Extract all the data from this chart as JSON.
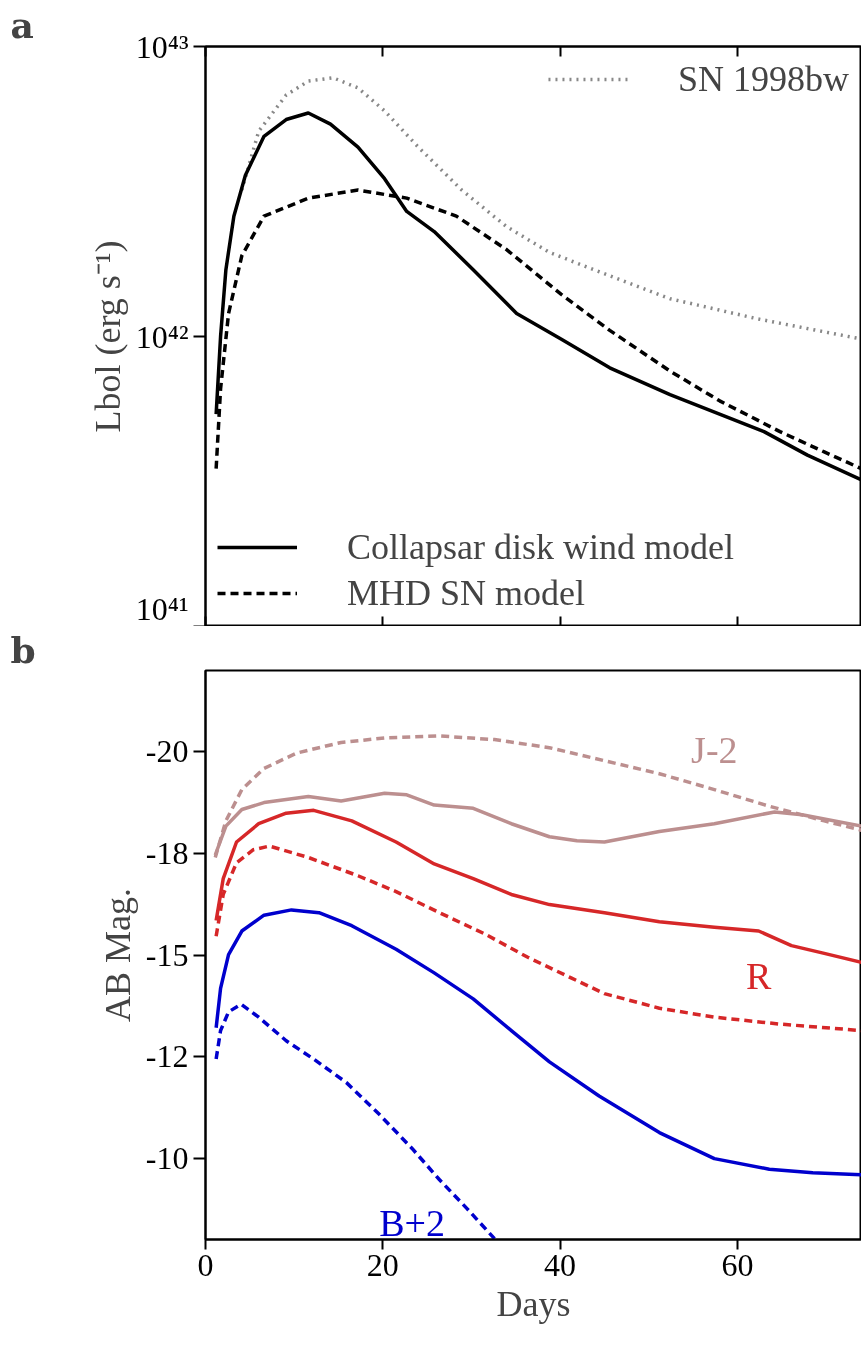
{
  "chart_data": [
    {
      "type": "line",
      "title": "a",
      "ylabel": "Lbol (erg s⁻¹)",
      "log": "y",
      "grid": false,
      "legend": [
        "top right",
        "bottom left"
      ],
      "tick_labels": "y",
      "xlim": [
        0,
        74
      ],
      "xticks": [
        {
          "value": 0,
          "label": null
        },
        {
          "value": 20,
          "label": null
        },
        {
          "value": 40,
          "label": null
        },
        {
          "value": 60,
          "label": null
        }
      ],
      "ylim": [
        1e+41,
        1e+43
      ],
      "yticks": [
        {
          "value": 1e+41,
          "label": "10⁴¹"
        },
        {
          "value": 1e+42,
          "label": "10⁴²"
        },
        {
          "value": 1e+43,
          "label": "10⁴³"
        }
      ],
      "series": [
        {
          "name": "SN 1998bw",
          "color": "#888888",
          "line_style": "dotted",
          "x": [
            4.1,
            6.0,
            9.1,
            11.6,
            14.4,
            17.2,
            20.2,
            24.0,
            28.9,
            33.9,
            38.8,
            43.8,
            52.4,
            62.3,
            74
          ],
          "values": [
            3.2e+42,
            5.1e+42,
            6.8e+42,
            7.6e+42,
            7.8e+42,
            7.2e+42,
            6e+42,
            4.5e+42,
            3.2e+42,
            2.4e+42,
            1.95e+42,
            1.7e+42,
            1.35e+42,
            1.15e+42,
            9.8e+41
          ]
        },
        {
          "name": "Collapsar disk wind model",
          "color": "#000000",
          "line_style": "solid",
          "x": [
            1.2,
            1.7,
            2.3,
            3.2,
            4.5,
            6.6,
            9.1,
            11.6,
            14.1,
            17.2,
            20.2,
            22.7,
            25.8,
            30.2,
            35.1,
            40.1,
            45.6,
            52.4,
            63.0,
            67.9,
            74
          ],
          "values": [
            5.4e+41,
            1e+42,
            1.7e+42,
            2.6e+42,
            3.6e+42,
            4.9e+42,
            5.6e+42,
            5.9e+42,
            5.4e+42,
            4.5e+42,
            3.5e+42,
            2.7e+42,
            2.3e+42,
            1.7e+42,
            1.2e+42,
            9.8e+41,
            7.8e+41,
            6.3e+41,
            4.7e+41,
            3.9e+41,
            3.2e+41
          ]
        },
        {
          "name": "MHD SN model",
          "color": "#000000",
          "line_style": "dashed",
          "x": [
            1.2,
            1.7,
            2.6,
            4.1,
            6.6,
            11.6,
            17.2,
            22.7,
            28.3,
            33.9,
            40.1,
            45.6,
            52.4,
            58.0,
            64.8,
            69.8,
            74
          ],
          "values": [
            3.5e+41,
            6.6e+41,
            1.2e+42,
            1.9e+42,
            2.6e+42,
            3e+42,
            3.2e+42,
            3e+42,
            2.6e+42,
            2e+42,
            1.4e+42,
            1.05e+42,
            7.6e+41,
            6e+41,
            4.7e+41,
            4e+41,
            3.5e+41
          ]
        }
      ]
    },
    {
      "type": "line",
      "title": "b",
      "xlabel": "Days",
      "ylabel": "AB Mag.",
      "grid": false,
      "legend": false,
      "xlim": [
        0,
        74
      ],
      "xticks": [
        0,
        20,
        40,
        60
      ],
      "ylim": [
        -8,
        -22
      ],
      "yticks": [
        -20,
        {
          "value": -17.5,
          "label": "-18"
        },
        -15,
        {
          "value": -12.5,
          "label": "-12"
        },
        -10
      ],
      "series": [
        {
          "name": "J-2",
          "color": "#bc8f8f",
          "line_style": "dashed",
          "x": [
            1.1,
            2.3,
            4.1,
            6.6,
            10.3,
            15.3,
            20.2,
            26.4,
            32.6,
            38.8,
            45.0,
            51.2,
            57.4,
            63.6,
            69.8,
            74
          ],
          "values": [
            -17.4,
            -18.3,
            -19.07,
            -19.59,
            -19.97,
            -20.23,
            -20.34,
            -20.39,
            -20.3,
            -20.1,
            -19.78,
            -19.46,
            -19.07,
            -18.66,
            -18.3,
            -18.07
          ]
        },
        {
          "color": "#bc8f8f",
          "line_style": "solid",
          "x": [
            1.1,
            2.3,
            4.1,
            6.6,
            11.6,
            15.3,
            20.2,
            22.7,
            25.8,
            30.2,
            34.5,
            38.8,
            41.9,
            45.0,
            51.2,
            57.4,
            64.2,
            67.3,
            74
          ],
          "values": [
            -17.46,
            -18.17,
            -18.58,
            -18.75,
            -18.9,
            -18.79,
            -18.98,
            -18.94,
            -18.69,
            -18.61,
            -18.23,
            -17.91,
            -17.81,
            -17.78,
            -18.04,
            -18.23,
            -18.52,
            -18.45,
            -18.17
          ]
        },
        {
          "name": "R",
          "color": "#d62728",
          "line_style": "solid",
          "x": [
            1.2,
            2.0,
            3.5,
            6.0,
            9.1,
            12.2,
            16.5,
            21.5,
            25.8,
            30.2,
            34.5,
            38.8,
            45.0,
            51.2,
            57.4,
            62.4,
            66.1,
            69.8,
            74
          ],
          "values": [
            -15.85,
            -16.88,
            -17.78,
            -18.23,
            -18.49,
            -18.56,
            -18.3,
            -17.78,
            -17.24,
            -16.88,
            -16.49,
            -16.24,
            -16.04,
            -15.82,
            -15.68,
            -15.59,
            -15.23,
            -15.04,
            -14.82
          ]
        },
        {
          "color": "#d62728",
          "line_style": "dashed",
          "x": [
            1.2,
            2.0,
            3.5,
            5.4,
            7.2,
            11.6,
            17.2,
            21.5,
            26.4,
            31.4,
            36.3,
            41.3,
            45.0,
            51.2,
            57.4,
            64.8,
            74
          ],
          "values": [
            -15.46,
            -16.49,
            -17.27,
            -17.59,
            -17.68,
            -17.4,
            -16.95,
            -16.56,
            -16.04,
            -15.53,
            -14.95,
            -14.43,
            -14.05,
            -13.69,
            -13.47,
            -13.3,
            -13.14
          ]
        },
        {
          "color": "#0000cd",
          "line_style": "solid",
          "x": [
            1.2,
            1.7,
            2.6,
            4.1,
            6.6,
            9.7,
            12.8,
            16.5,
            21.5,
            25.8,
            30.2,
            34.5,
            38.8,
            44.4,
            51.2,
            57.4,
            63.6,
            68.5,
            74
          ],
          "values": [
            -13.21,
            -14.18,
            -15.01,
            -15.59,
            -15.98,
            -16.11,
            -16.04,
            -15.72,
            -15.14,
            -14.56,
            -13.92,
            -13.14,
            -12.37,
            -11.53,
            -10.63,
            -9.99,
            -9.73,
            -9.64,
            -9.59
          ]
        },
        {
          "name": "B+2",
          "color": "#0000cd",
          "line_style": "dashed",
          "x": [
            1.2,
            1.7,
            2.6,
            4.0,
            6.0,
            9.1,
            12.2,
            15.9,
            19.6,
            23.3,
            26.4,
            29.5,
            32.6
          ],
          "values": [
            -12.44,
            -13.14,
            -13.6,
            -13.79,
            -13.47,
            -12.89,
            -12.44,
            -11.86,
            -11.08,
            -10.24,
            -9.47,
            -8.76,
            -8.02
          ]
        }
      ]
    }
  ]
}
